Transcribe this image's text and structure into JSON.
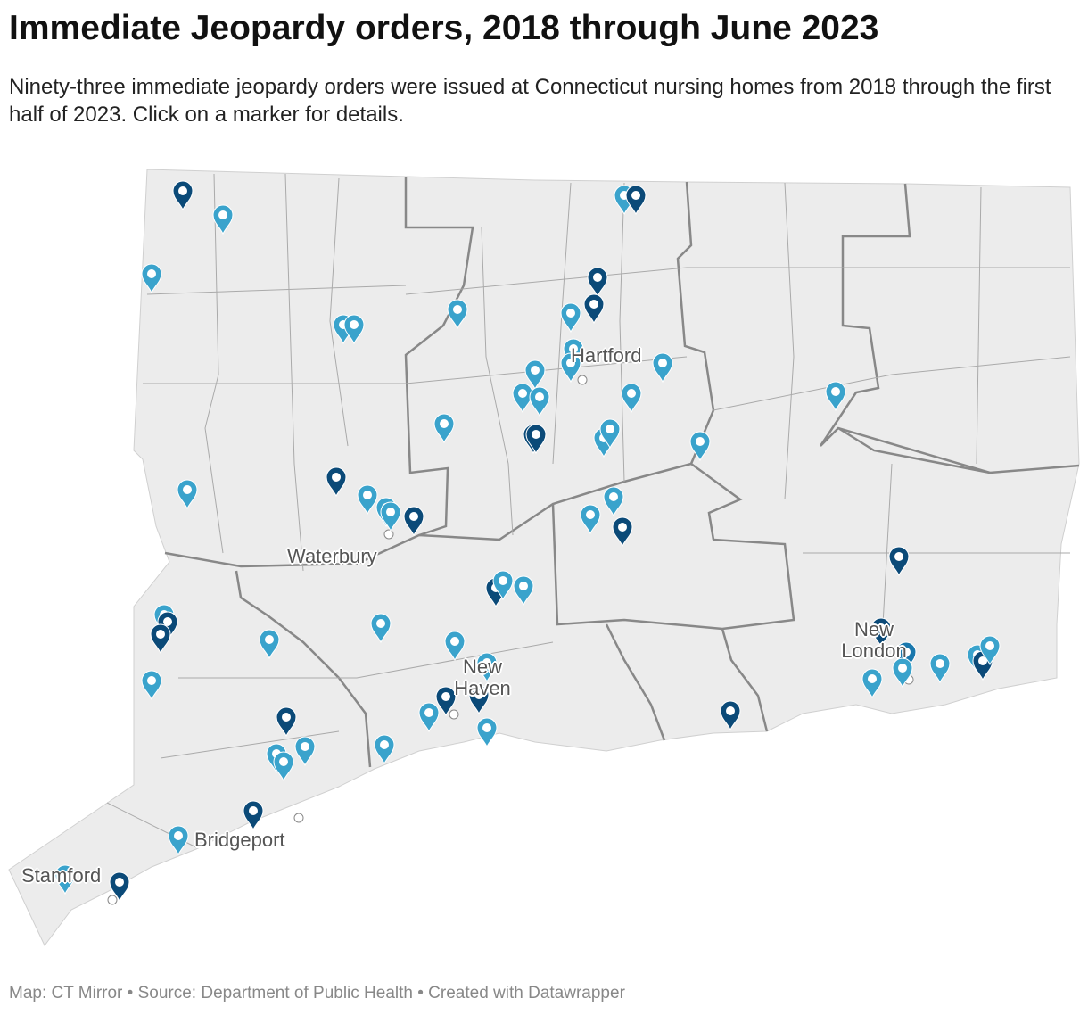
{
  "title": "Immediate Jeopardy orders, 2018 through June 2023",
  "description": "Ninety-three immediate jeopardy orders were issued at Connecticut nursing homes from 2018 through the first half of 2023. Click on a marker for details.",
  "map": {
    "labels": [
      "Hartford",
      "Waterbury",
      "New Haven",
      "New London",
      "Bridgeport",
      "Stamford"
    ]
  },
  "footer": "Map: CT Mirror • Source: Department of Public Health • Created with Datawrapper"
}
